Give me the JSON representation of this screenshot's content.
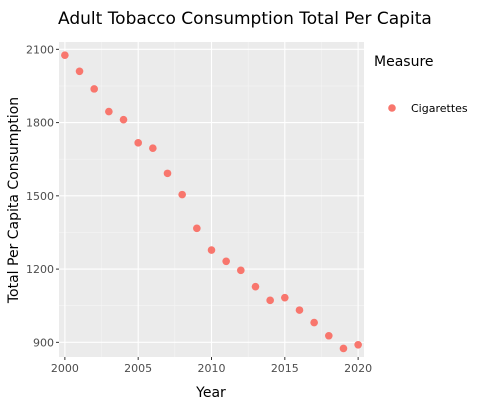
{
  "chart_data": {
    "type": "scatter",
    "title": "Adult Tobacco Consumption Total Per Capita",
    "xlabel": "Year",
    "ylabel": "Total Per Capita Consumption",
    "xlim": [
      1999.6,
      2020.4
    ],
    "ylim": [
      840,
      2130
    ],
    "x_ticks": [
      2000,
      2005,
      2010,
      2015,
      2020
    ],
    "y_ticks": [
      900,
      1200,
      1500,
      1800,
      2100
    ],
    "grid": true,
    "legend": {
      "title": "Measure",
      "position": "right"
    },
    "series": [
      {
        "name": "Cigarettes",
        "color": "#F8766D",
        "points": [
          {
            "x": 2000,
            "y": 2076
          },
          {
            "x": 2001,
            "y": 2010
          },
          {
            "x": 2002,
            "y": 1938
          },
          {
            "x": 2003,
            "y": 1845
          },
          {
            "x": 2004,
            "y": 1812
          },
          {
            "x": 2005,
            "y": 1717
          },
          {
            "x": 2006,
            "y": 1695
          },
          {
            "x": 2007,
            "y": 1592
          },
          {
            "x": 2008,
            "y": 1505
          },
          {
            "x": 2009,
            "y": 1367
          },
          {
            "x": 2010,
            "y": 1278
          },
          {
            "x": 2011,
            "y": 1232
          },
          {
            "x": 2012,
            "y": 1195
          },
          {
            "x": 2013,
            "y": 1128
          },
          {
            "x": 2014,
            "y": 1072
          },
          {
            "x": 2015,
            "y": 1083
          },
          {
            "x": 2016,
            "y": 1032
          },
          {
            "x": 2017,
            "y": 981
          },
          {
            "x": 2018,
            "y": 927
          },
          {
            "x": 2019,
            "y": 875
          },
          {
            "x": 2020,
            "y": 890
          }
        ]
      }
    ]
  }
}
